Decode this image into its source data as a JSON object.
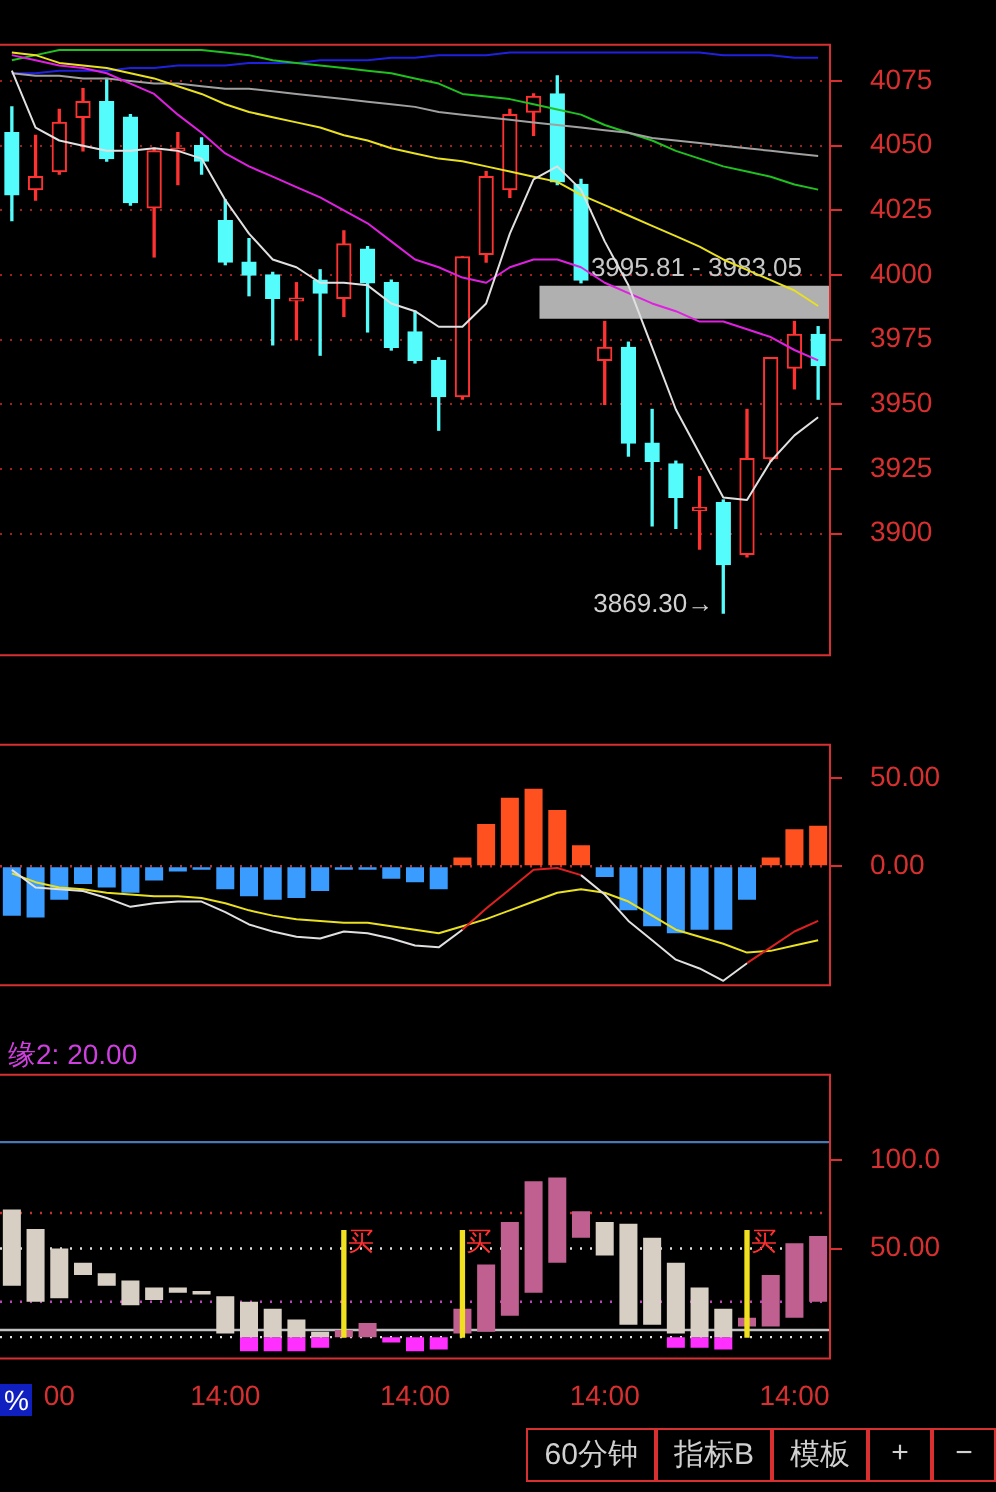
{
  "chart_data": [
    {
      "type": "candlestick",
      "tick_labels": "y",
      "grid": "y",
      "ylim": [
        3853,
        4089
      ],
      "yticks": [
        3900,
        3925,
        3950,
        3975,
        4000,
        4025,
        4050,
        4075
      ],
      "categories": [
        null,
        null,
        null,
        null,
        null,
        null,
        null,
        null,
        null,
        null,
        null,
        null,
        null,
        null,
        null,
        null,
        null,
        null,
        null,
        null,
        null,
        null,
        null,
        null,
        null,
        null,
        null,
        null,
        null,
        null,
        null,
        null,
        null,
        null,
        null
      ],
      "ohlc": [
        [
          4055,
          4065,
          4021,
          4031
        ],
        [
          4033,
          4054,
          4029,
          4038
        ],
        [
          4040,
          4064,
          4039,
          4059
        ],
        [
          4061,
          4072,
          4048,
          4067
        ],
        [
          4067,
          4076,
          4044,
          4045
        ],
        [
          4061,
          4062,
          4027,
          4028
        ],
        [
          4026,
          4049,
          4007,
          4048
        ],
        [
          4048,
          4055,
          4035,
          4049
        ],
        [
          4050,
          4053,
          4039,
          4044
        ],
        [
          4021,
          4029,
          4004,
          4005
        ],
        [
          4005,
          4014,
          3992,
          4000
        ],
        [
          4000,
          4001,
          3973,
          3991
        ],
        [
          3990,
          3997,
          3975,
          3991
        ],
        [
          3998,
          4002,
          3969,
          3993
        ],
        [
          3991,
          4017,
          3984,
          4012
        ],
        [
          4010,
          4011,
          3978,
          3997
        ],
        [
          3997,
          3998,
          3971,
          3972
        ],
        [
          3978,
          3986,
          3966,
          3967
        ],
        [
          3967,
          3968,
          3940,
          3953
        ],
        [
          3953,
          4007,
          3952,
          4007
        ],
        [
          4008,
          4040,
          4005,
          4038
        ],
        [
          4033,
          4064,
          4030,
          4062
        ],
        [
          4063,
          4070,
          4054,
          4069
        ],
        [
          4070,
          4077,
          4035,
          4036
        ],
        [
          4035,
          4037,
          3997,
          3998
        ],
        [
          3967,
          3982,
          3950,
          3972
        ],
        [
          3972,
          3974,
          3930,
          3935
        ],
        [
          3935,
          3948,
          3903,
          3928
        ],
        [
          3927,
          3928,
          3902,
          3914
        ],
        [
          3909,
          3922,
          3894,
          3910
        ],
        [
          3912,
          3913,
          3869.3,
          3888
        ],
        [
          3892,
          3948,
          3891,
          3929
        ],
        [
          3929,
          3968,
          3928,
          3968
        ],
        [
          3964,
          3982,
          3956,
          3977
        ],
        [
          3977,
          3980,
          3952,
          3965
        ]
      ],
      "colors": [
        "#54fcfc",
        "#ff3232",
        "#ff3232",
        "#ff3232",
        "#54fcfc",
        "#54fcfc",
        "#ff3232",
        "#ff3232",
        "#54fcfc",
        "#54fcfc",
        "#54fcfc",
        "#54fcfc",
        "#ff3232",
        "#54fcfc",
        "#ff3232",
        "#54fcfc",
        "#54fcfc",
        "#54fcfc",
        "#54fcfc",
        "#ff3232",
        "#ff3232",
        "#ff3232",
        "#ff3232",
        "#54fcfc",
        "#54fcfc",
        "#ff3232",
        "#54fcfc",
        "#54fcfc",
        "#54fcfc",
        "#ff3232",
        "#54fcfc",
        "#ff3232",
        "#ff3232",
        "#ff3232",
        "#54fcfc"
      ],
      "series": [
        {
          "type": "line",
          "color": "#e0e0e0",
          "values": [
            4079,
            4057,
            4052,
            4050,
            4048,
            4048,
            4049,
            4048,
            4045,
            4029,
            4016,
            4006,
            4003,
            3997,
            3997,
            3996,
            3989,
            3986,
            3980,
            3980,
            3989,
            4016,
            4037,
            4042,
            4033,
            4013,
            3996,
            3972,
            3948,
            3931,
            3914,
            3913,
            3928,
            3938,
            3945
          ]
        },
        {
          "type": "line",
          "color": "#e020e0",
          "values": [
            4085,
            4083,
            4081,
            4080,
            4078,
            4074,
            4070,
            4062,
            4055,
            4047,
            4042,
            4038,
            4034,
            4030,
            4025,
            4020,
            4013,
            4006,
            4003,
            3999,
            3997,
            4003,
            4006,
            4006,
            4003,
            3997,
            3993,
            3989,
            3986,
            3982,
            3982,
            3979,
            3976,
            3971,
            3967
          ]
        },
        {
          "type": "line",
          "color": "#e8e020",
          "values": [
            4086,
            4085,
            4082,
            4081,
            4080,
            4078,
            4076,
            4073,
            4070,
            4066,
            4063,
            4061,
            4059,
            4057,
            4054,
            4052,
            4049,
            4047,
            4045,
            4044,
            4042,
            4040,
            4038,
            4036,
            4031,
            4027,
            4023,
            4019,
            4015,
            4011,
            4006,
            4002,
            3998,
            3994,
            3988
          ]
        },
        {
          "type": "line",
          "color": "#a0a0a0",
          "values": [
            4078,
            4077,
            4077,
            4076,
            4076,
            4075,
            4074,
            4074,
            4073,
            4072,
            4072,
            4071,
            4070,
            4069,
            4068,
            4067,
            4066,
            4065,
            4063,
            4062,
            4061,
            4060,
            4059,
            4058,
            4057,
            4056,
            4055,
            4053,
            4052,
            4051,
            4050,
            4049,
            4048,
            4047,
            4046
          ]
        },
        {
          "type": "line",
          "color": "#20c020",
          "values": [
            4083,
            4085,
            4087,
            4087,
            4087,
            4087,
            4087,
            4087,
            4087,
            4086,
            4085,
            4083,
            4082,
            4081,
            4080,
            4079,
            4078,
            4076,
            4074,
            4070,
            4069,
            4068,
            4066,
            4064,
            4062,
            4058,
            4055,
            4052,
            4048,
            4045,
            4042,
            4040,
            4038,
            4035,
            4033
          ]
        },
        {
          "type": "line",
          "color": "#2020e0",
          "values": [
            4078,
            4078,
            4079,
            4079,
            4079,
            4080,
            4080,
            4081,
            4081,
            4081,
            4082,
            4082,
            4082,
            4083,
            4083,
            4083,
            4084,
            4084,
            4085,
            4085,
            4085,
            4086,
            4086,
            4086,
            4086,
            4086,
            4086,
            4086,
            4086,
            4086,
            4085,
            4085,
            4085,
            4084,
            4084
          ]
        }
      ],
      "bands": [
        {
          "axis": "y",
          "from": 3983.05,
          "to": 3995.81,
          "label": "3995.81 - 3983.05",
          "color": "#b0b0b0"
        }
      ],
      "annotations": [
        "3869.30→"
      ]
    },
    {
      "type": "bar",
      "tick_labels": "y",
      "ylim": [
        -67.5,
        69
      ],
      "yticks": [
        {
          "value": 0,
          "label": "0.00"
        },
        {
          "value": 50,
          "label": "50.00"
        }
      ],
      "categories": [
        null,
        null,
        null,
        null,
        null,
        null,
        null,
        null,
        null,
        null,
        null,
        null,
        null,
        null,
        null,
        null,
        null,
        null,
        null,
        null,
        null,
        null,
        null,
        null,
        null,
        null,
        null,
        null,
        null,
        null,
        null,
        null,
        null,
        null,
        null
      ],
      "series": [
        {
          "type": "bar",
          "values": [
            -28,
            -29,
            -19,
            -10,
            -12,
            -15,
            -8,
            -3,
            -2,
            -13,
            -17,
            -19,
            -18,
            -14,
            -2,
            -2,
            -7,
            -9,
            -13,
            5,
            24,
            39,
            44,
            32,
            12,
            -6,
            -25,
            -34,
            -38,
            -36,
            -36,
            -19,
            5,
            21,
            23
          ],
          "colors": [
            "#3a9cff",
            "#3a9cff",
            "#3a9cff",
            "#3a9cff",
            "#3a9cff",
            "#3a9cff",
            "#3a9cff",
            "#3a9cff",
            "#3a9cff",
            "#3a9cff",
            "#3a9cff",
            "#3a9cff",
            "#3a9cff",
            "#3a9cff",
            "#3a9cff",
            "#3a9cff",
            "#3a9cff",
            "#3a9cff",
            "#3a9cff",
            "#ff5020",
            "#ff5020",
            "#ff5020",
            "#ff5020",
            "#ff5020",
            "#ff5020",
            "#3a9cff",
            "#3a9cff",
            "#3a9cff",
            "#3a9cff",
            "#3a9cff",
            "#3a9cff",
            "#3a9cff",
            "#ff5020",
            "#ff5020",
            "#ff5020"
          ]
        },
        {
          "type": "line",
          "color": "#e0e0e0",
          "values": [
            -2,
            -12,
            -13,
            -14,
            -18,
            -23,
            -21,
            -20,
            -20,
            -26,
            -33,
            -37,
            -40,
            -41,
            -37,
            -38,
            -41,
            -45,
            -46,
            -36,
            null,
            null,
            null,
            null,
            -5,
            -16,
            -31,
            -42,
            -53,
            -58,
            -65,
            -55,
            null,
            null,
            null
          ]
        },
        {
          "type": "line",
          "color": "#e02020",
          "values": [
            null,
            null,
            null,
            null,
            null,
            null,
            null,
            null,
            null,
            null,
            null,
            null,
            null,
            null,
            null,
            null,
            null,
            null,
            null,
            -36,
            -24,
            -13,
            -2,
            -1,
            -5,
            null,
            null,
            null,
            null,
            null,
            null,
            -55,
            -46,
            -37,
            -31
          ]
        },
        {
          "type": "line",
          "color": "#e8e020",
          "values": [
            -4,
            -9,
            -12,
            -13,
            -15,
            -16,
            -17,
            -17,
            -18,
            -21,
            -25,
            -28,
            -30,
            -31,
            -32,
            -32,
            -34,
            -36,
            -38,
            -34,
            -30,
            -25,
            -20,
            -15,
            -13,
            -15,
            -20,
            -28,
            -36,
            -40,
            -44,
            -49,
            -48,
            -45,
            -42
          ]
        }
      ],
      "ref_lines": [
        {
          "axis": "y",
          "value": 0,
          "color": "#c03030",
          "line_style": "dotted"
        }
      ]
    },
    {
      "type": "bar",
      "ylim": [
        -12,
        148
      ],
      "yticks": [
        {
          "value": 50,
          "label": "50.00"
        },
        {
          "value": 100,
          "label": "100.0"
        }
      ],
      "categories": [
        null,
        null,
        "00",
        null,
        null,
        null,
        null,
        null,
        null,
        "14:00",
        null,
        null,
        null,
        null,
        null,
        null,
        null,
        "14:00",
        null,
        null,
        null,
        null,
        null,
        null,
        null,
        "14:00",
        null,
        null,
        null,
        null,
        null,
        null,
        null,
        "14:00",
        null
      ],
      "series": [
        {
          "type": "bar",
          "base": [
            29,
            20,
            22,
            35,
            29,
            18,
            21,
            25,
            24,
            2,
            0,
            0,
            0,
            0,
            0,
            0,
            null,
            null,
            null,
            2,
            3,
            12,
            25,
            42,
            56,
            46,
            7,
            7,
            2,
            0,
            0,
            6,
            6,
            11,
            20
          ],
          "values": [
            43,
            41,
            28,
            7,
            7,
            14,
            7,
            3,
            2,
            21,
            20,
            16,
            10,
            3,
            4,
            8,
            null,
            null,
            null,
            14,
            38,
            53,
            63,
            48,
            15,
            19,
            57,
            49,
            40,
            28,
            16,
            5,
            29,
            42,
            37
          ],
          "colors": [
            "#d8cfc4",
            "#d8cfc4",
            "#d8cfc4",
            "#d8cfc4",
            "#d8cfc4",
            "#d8cfc4",
            "#d8cfc4",
            "#d8cfc4",
            "#d8cfc4",
            "#d8cfc4",
            "#d8cfc4",
            "#d8cfc4",
            "#d8cfc4",
            "#d8cfc4",
            "#c06090",
            "#c06090",
            "#d8cfc4",
            "#d8cfc4",
            "#d8cfc4",
            "#c06090",
            "#c06090",
            "#c06090",
            "#c06090",
            "#c06090",
            "#c06090",
            "#d8cfc4",
            "#d8cfc4",
            "#d8cfc4",
            "#d8cfc4",
            "#d8cfc4",
            "#d8cfc4",
            "#c06090",
            "#c06090",
            "#c06090",
            "#c06090"
          ]
        },
        {
          "type": "bar",
          "base": [
            null,
            null,
            null,
            null,
            null,
            null,
            null,
            null,
            null,
            null,
            -8,
            -8,
            -8,
            -6,
            null,
            null,
            -3,
            -8,
            -7,
            null,
            null,
            null,
            null,
            null,
            null,
            null,
            null,
            null,
            -6,
            -6,
            -7,
            null,
            null,
            null,
            null
          ],
          "values": [
            null,
            null,
            null,
            null,
            null,
            null,
            null,
            null,
            null,
            null,
            8,
            8,
            8,
            6,
            null,
            null,
            3,
            8,
            7,
            null,
            null,
            null,
            null,
            null,
            null,
            null,
            null,
            null,
            6,
            6,
            7,
            null,
            null,
            null,
            null
          ],
          "color": "#ff30ff"
        },
        {
          "type": "bar",
          "values": [
            null,
            null,
            null,
            null,
            null,
            null,
            null,
            null,
            null,
            null,
            null,
            null,
            null,
            null,
            60,
            null,
            null,
            null,
            null,
            60,
            null,
            null,
            null,
            null,
            null,
            null,
            null,
            null,
            null,
            null,
            null,
            60,
            null,
            null,
            null
          ],
          "color": "#f0e020",
          "value_labels": [
            null,
            null,
            null,
            null,
            null,
            null,
            null,
            null,
            null,
            null,
            null,
            null,
            null,
            null,
            "买",
            null,
            null,
            null,
            null,
            "买",
            null,
            null,
            null,
            null,
            null,
            null,
            null,
            null,
            null,
            null,
            null,
            "买",
            null,
            null,
            null
          ]
        }
      ],
      "ref_lines": [
        {
          "axis": "y",
          "value": 110,
          "color": "#4a78b0"
        },
        {
          "axis": "y",
          "value": 4,
          "color": "#c0c0c0"
        },
        {
          "axis": "y",
          "value": 70,
          "color": "#c03030",
          "line_style": "dotted"
        },
        {
          "axis": "y",
          "value": 50,
          "color": "#e0e0e0",
          "line_style": "dotted"
        },
        {
          "axis": "y",
          "value": 20,
          "color": "#c040c0",
          "line_style": "dotted"
        },
        {
          "axis": "y",
          "value": 0,
          "color": "#e0e0e0",
          "line_style": "dotted"
        }
      ],
      "annotations": [
        "缘2: 20.00",
        "%",
        "60分钟",
        "指标B",
        "模板",
        "+",
        "−"
      ]
    }
  ]
}
